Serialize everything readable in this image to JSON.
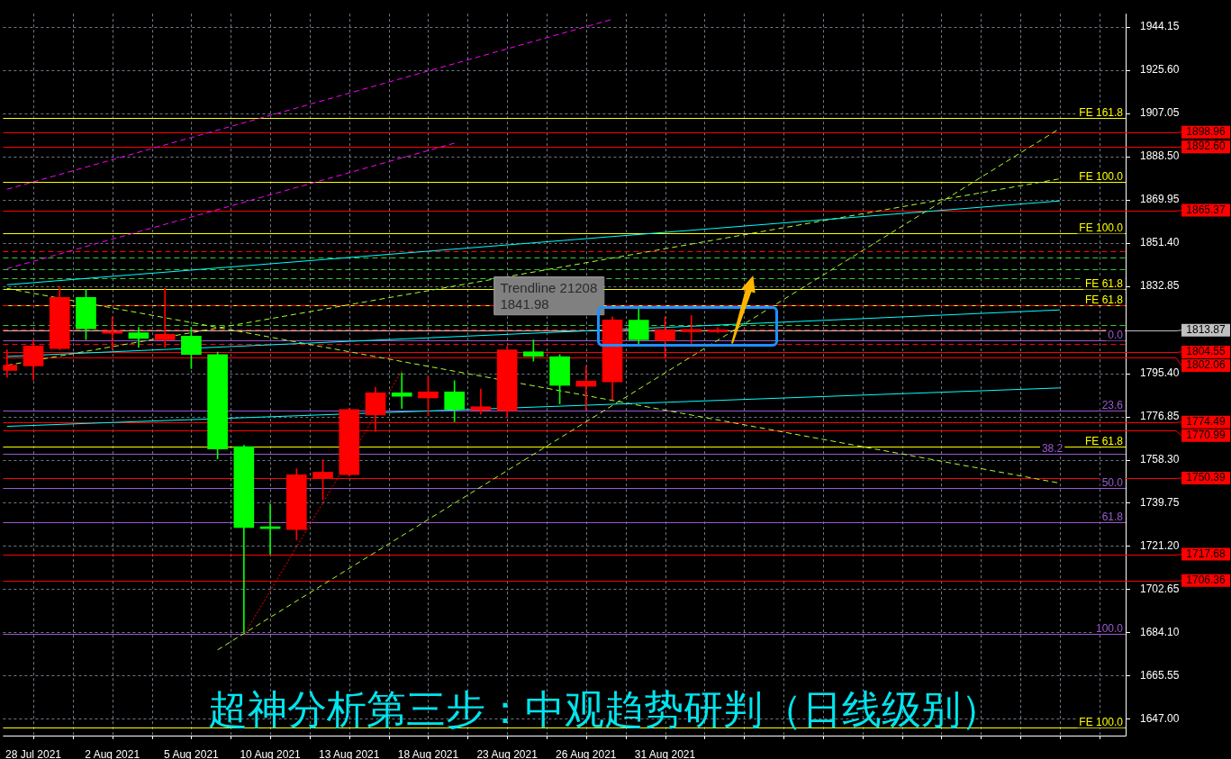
{
  "chart_data": {
    "type": "candlestick",
    "title": "超神分析第三步：中观趋势研判（日线级别）",
    "annotations": [
      "Trendline 21208",
      "1841.98",
      {
        "text": "0.0",
        "y": 1809.4
      },
      {
        "text": "23.6",
        "y": 1779.35
      },
      {
        "text": "38.2",
        "y": 1760.95
      },
      {
        "text": "50.0",
        "y": 1746.3
      },
      {
        "text": "61.8",
        "y": 1731.6
      },
      {
        "text": "100.0",
        "y": 1683.45
      }
    ],
    "categories": [
      null,
      "28 Jul 2021",
      null,
      null,
      "2 Aug 2021",
      null,
      null,
      "5 Aug 2021",
      null,
      null,
      "10 Aug 2021",
      null,
      null,
      "13 Aug 2021",
      null,
      null,
      "18 Aug 2021",
      null,
      null,
      "23 Aug 2021",
      null,
      null,
      "26 Aug 2021",
      null,
      null,
      "31 Aug 2021",
      null,
      null,
      null,
      null,
      null,
      null,
      null,
      null,
      null,
      null,
      null,
      null,
      null,
      null,
      null
    ],
    "ohlc": [
      [
        1796.6,
        1805.4,
        1793.6,
        1798.9
      ],
      [
        1798.5,
        1809.7,
        1792.5,
        1807.1
      ],
      [
        1806.0,
        1832.6,
        1805.5,
        1828.0
      ],
      [
        1828.0,
        1831.2,
        1809.9,
        1814.5
      ],
      [
        1812.6,
        1819.6,
        1805.6,
        1813.5
      ],
      [
        1812.8,
        1815.1,
        1806.6,
        1810.3
      ],
      [
        1809.8,
        1831.8,
        1806.5,
        1812.1
      ],
      [
        1811.3,
        1815.1,
        1797.4,
        1803.5
      ],
      [
        1803.4,
        1804.5,
        1758.6,
        1762.9
      ],
      [
        1763.9,
        1764.5,
        1684.1,
        1729.1
      ],
      [
        1729.4,
        1739.2,
        1717.7,
        1728.7
      ],
      [
        1728.3,
        1754.4,
        1723.8,
        1751.8
      ],
      [
        1750.5,
        1758.2,
        1741.1,
        1752.9
      ],
      [
        1751.9,
        1780.3,
        1751.3,
        1779.8
      ],
      [
        1777.5,
        1789.4,
        1770.4,
        1787.0
      ],
      [
        1787.0,
        1795.5,
        1780.3,
        1785.5
      ],
      [
        1784.8,
        1793.9,
        1777.2,
        1787.4
      ],
      [
        1787.4,
        1792.2,
        1774.6,
        1779.9
      ],
      [
        1779.5,
        1788.6,
        1777.8,
        1781.0
      ],
      [
        1779.3,
        1806.9,
        1776.5,
        1805.4
      ],
      [
        1804.6,
        1809.7,
        1800.6,
        1802.7
      ],
      [
        1802.5,
        1803.4,
        1782.2,
        1790.2
      ],
      [
        1789.8,
        1798.4,
        1779.7,
        1792.0
      ],
      [
        1791.7,
        1819.6,
        1784.1,
        1818.3
      ],
      [
        1818.2,
        1823.1,
        1807.5,
        1809.8
      ],
      [
        1809.4,
        1819.6,
        1801.8,
        1814.1
      ],
      [
        1813.2,
        1820.2,
        1808.2,
        1814.2
      ],
      [
        1813.2,
        1815.0,
        1812.8,
        1813.87
      ],
      null,
      null,
      null,
      null,
      null,
      null,
      null,
      null,
      null,
      null,
      null,
      null,
      null
    ],
    "colors": [
      "#ff0000",
      "#ff0000",
      "#ff0000",
      "#00ff00",
      "#ff0000",
      "#00ff00",
      "#ff0000",
      "#00ff00",
      "#00ff00",
      "#00ff00",
      "#00ff00",
      "#ff0000",
      "#ff0000",
      "#ff0000",
      "#ff0000",
      "#00ff00",
      "#ff0000",
      "#00ff00",
      "#ff0000",
      "#ff0000",
      "#00ff00",
      "#00ff00",
      "#ff0000",
      "#ff0000",
      "#00ff00",
      "#ff0000",
      "#ff0000",
      "#ff0000",
      null,
      null,
      null,
      null,
      null,
      null,
      null,
      null,
      null,
      null,
      null,
      null,
      null
    ],
    "series": [
      {
        "type": "line",
        "color": "#ff00ff",
        "line_style": "dashed",
        "values": [
          1874.4,
          null,
          null,
          null,
          null,
          null,
          null,
          null,
          null,
          null,
          null,
          null,
          null,
          null,
          null,
          null,
          null,
          null,
          null,
          null,
          null,
          null,
          null,
          1947.4,
          null,
          null,
          null,
          null,
          null,
          null,
          null,
          null,
          null,
          null,
          null,
          null,
          null,
          null,
          null,
          null,
          null
        ]
      },
      {
        "type": "line",
        "color": "#ff00ff",
        "line_style": "dashed",
        "values": [
          1840.3,
          null,
          null,
          null,
          null,
          null,
          null,
          null,
          null,
          null,
          null,
          null,
          null,
          null,
          null,
          null,
          null,
          1894.2,
          null,
          null,
          null,
          null,
          null,
          null,
          null,
          null,
          null,
          null,
          null,
          null,
          null,
          null,
          null,
          null,
          null,
          null,
          null,
          null,
          null,
          null,
          null
        ]
      },
      {
        "type": "line",
        "color": "#00ffff",
        "line_style": "solid",
        "values": [
          1833.4,
          null,
          null,
          null,
          null,
          null,
          null,
          null,
          null,
          null,
          null,
          null,
          null,
          null,
          null,
          null,
          null,
          null,
          null,
          null,
          null,
          null,
          null,
          null,
          null,
          null,
          null,
          null,
          null,
          null,
          null,
          null,
          null,
          null,
          null,
          null,
          null,
          null,
          null,
          null,
          1869.4
        ]
      },
      {
        "type": "line",
        "color": "#00ffff",
        "line_style": "solid",
        "values": [
          1772.6,
          null,
          null,
          null,
          null,
          null,
          null,
          null,
          null,
          null,
          null,
          null,
          null,
          null,
          null,
          null,
          null,
          null,
          null,
          null,
          null,
          null,
          null,
          null,
          null,
          null,
          null,
          null,
          null,
          null,
          null,
          null,
          null,
          null,
          null,
          null,
          null,
          null,
          null,
          null,
          1789.1
        ]
      },
      {
        "type": "line",
        "color": "#00ffff",
        "line_style": "solid",
        "values": [
          1802.6,
          null,
          null,
          null,
          null,
          null,
          null,
          null,
          null,
          null,
          null,
          null,
          null,
          null,
          null,
          null,
          null,
          null,
          null,
          null,
          null,
          null,
          null,
          null,
          null,
          null,
          null,
          null,
          null,
          null,
          null,
          null,
          null,
          null,
          null,
          null,
          null,
          null,
          null,
          null,
          1822.6
        ]
      },
      {
        "type": "line",
        "color": "#adff2f",
        "line_style": "dashed",
        "values": [
          1831.8,
          null,
          null,
          null,
          null,
          null,
          null,
          null,
          null,
          null,
          null,
          null,
          null,
          null,
          null,
          null,
          null,
          null,
          null,
          null,
          null,
          null,
          null,
          null,
          null,
          null,
          null,
          null,
          null,
          null,
          null,
          null,
          null,
          null,
          null,
          null,
          null,
          null,
          null,
          null,
          1748.2
        ]
      },
      {
        "type": "line",
        "color": "#adff2f",
        "line_style": "dashed",
        "values": [
          null,
          null,
          null,
          null,
          null,
          null,
          null,
          null,
          1676.6,
          null,
          null,
          null,
          null,
          null,
          null,
          null,
          null,
          null,
          null,
          null,
          null,
          null,
          null,
          null,
          null,
          null,
          null,
          null,
          null,
          null,
          null,
          null,
          null,
          null,
          null,
          null,
          null,
          null,
          null,
          null,
          1900.5
        ]
      },
      {
        "type": "line",
        "color": "#adff2f",
        "line_style": "dashed",
        "values": [
          1798.8,
          null,
          null,
          null,
          null,
          null,
          null,
          null,
          null,
          null,
          null,
          null,
          null,
          null,
          null,
          null,
          null,
          null,
          null,
          null,
          null,
          null,
          null,
          null,
          null,
          null,
          null,
          null,
          null,
          null,
          null,
          null,
          null,
          null,
          null,
          null,
          null,
          null,
          null,
          null,
          1878.9
        ]
      },
      {
        "type": "line",
        "color": "#ff0000",
        "line_style": "dotted",
        "values": [
          null,
          null,
          null,
          null,
          null,
          null,
          null,
          null,
          null,
          1683.0,
          null,
          null,
          null,
          null,
          null,
          1796.5,
          null,
          null,
          null,
          null,
          null,
          null,
          null,
          null,
          null,
          null,
          null,
          null,
          null,
          null,
          null,
          null,
          null,
          null,
          null,
          null,
          null,
          null,
          null,
          null,
          null
        ]
      }
    ],
    "ref_lines": [
      {
        "axis": "y",
        "value": 1898.96,
        "label": "1898.96",
        "color": "#ff0000"
      },
      {
        "axis": "y",
        "value": 1892.6,
        "label": "1892.60",
        "color": "#ff0000"
      },
      {
        "axis": "y",
        "value": 1865.37,
        "label": "1865.37",
        "color": "#ff0000"
      },
      {
        "axis": "y",
        "value": 1813.87,
        "label": "1813.87",
        "color": "#c0c0c0"
      },
      {
        "axis": "y",
        "value": 1804.55,
        "label": "1804.55",
        "color": "#ff0000"
      },
      {
        "axis": "y",
        "value": 1802.06,
        "label": "1802.06",
        "color": "#ff0000"
      },
      {
        "axis": "y",
        "value": 1774.49,
        "label": "1774.49",
        "color": "#ff0000"
      },
      {
        "axis": "y",
        "value": 1770.99,
        "label": "1770.99",
        "color": "#ff0000"
      },
      {
        "axis": "y",
        "value": 1750.39,
        "label": "1750.39",
        "color": "#ff0000"
      },
      {
        "axis": "y",
        "value": 1717.68,
        "label": "1717.68",
        "color": "#ff0000"
      },
      {
        "axis": "y",
        "value": 1706.36,
        "label": "1706.36",
        "color": "#ff0000"
      },
      {
        "axis": "y",
        "value": 1905.06,
        "label": "FE 161.8",
        "color": "#ffff00"
      },
      {
        "axis": "y",
        "value": 1877.7,
        "label": "FE 100.0",
        "color": "#ffff00"
      },
      {
        "axis": "y",
        "value": 1855.35,
        "label": "FE 100.0",
        "color": "#ffff00"
      },
      {
        "axis": "y",
        "value": 1831.4,
        "label": "FE 61.8",
        "color": "#ffff00"
      },
      {
        "axis": "y",
        "value": 1824.6,
        "label": "FE 61.8",
        "color": "#ffff00"
      },
      {
        "axis": "y",
        "value": 1763.9,
        "label": "FE 61.8",
        "color": "#ffff00"
      },
      {
        "axis": "y",
        "value": 1643.2,
        "label": "FE 100.0",
        "color": "#ffff00"
      },
      {
        "axis": "y",
        "value": 1809.4,
        "color": "#9b59d0"
      },
      {
        "axis": "y",
        "value": 1779.35,
        "color": "#9b59d0"
      },
      {
        "axis": "y",
        "value": 1760.95,
        "color": "#9b59d0"
      },
      {
        "axis": "y",
        "value": 1746.3,
        "color": "#9b59d0"
      },
      {
        "axis": "y",
        "value": 1731.6,
        "color": "#9b59d0"
      },
      {
        "axis": "y",
        "value": 1683.45,
        "color": "#9b59d0"
      },
      {
        "axis": "y",
        "value": 1848.0,
        "color": "#ff0000",
        "line_style": "dashed"
      },
      {
        "axis": "y",
        "value": 1824.45,
        "color": "#ff0000",
        "line_style": "dashed"
      },
      {
        "axis": "y",
        "value": 1814.25,
        "color": "#ff0000",
        "line_style": "dashed"
      },
      {
        "axis": "y",
        "value": 1808.15,
        "color": "#ff0000",
        "line_style": "dashed"
      },
      {
        "axis": "y",
        "value": 1845.1,
        "color": "#32cd32",
        "line_style": "dashed"
      },
      {
        "axis": "y",
        "value": 1840.05,
        "color": "#32cd32",
        "line_style": "dashed"
      },
      {
        "axis": "y",
        "value": 1836.25,
        "color": "#32cd32",
        "line_style": "dashed"
      },
      {
        "axis": "y",
        "value": 1816.25,
        "color": "#32cd32",
        "line_style": "dashed"
      }
    ],
    "ylim": [
      1639.8,
      1949.8
    ],
    "yticks": [
      {
        "value": 1944.15,
        "label": "1944.15"
      },
      {
        "value": 1925.6,
        "label": "1925.60"
      },
      {
        "value": 1907.05,
        "label": "1907.05"
      },
      {
        "value": 1888.5,
        "label": "1888.50"
      },
      {
        "value": 1869.95,
        "label": "1869.95"
      },
      {
        "value": 1851.4,
        "label": "1851.40"
      },
      {
        "value": 1832.85,
        "label": "1832.85"
      },
      {
        "value": 1795.4,
        "label": "1795.40"
      },
      {
        "value": 1776.85,
        "label": "1776.85"
      },
      {
        "value": 1758.3,
        "label": "1758.30"
      },
      {
        "value": 1739.75,
        "label": "1739.75"
      },
      {
        "value": 1721.2,
        "label": "1721.20"
      },
      {
        "value": 1702.65,
        "label": "1702.65"
      },
      {
        "value": 1684.1,
        "label": "1684.10"
      },
      {
        "value": 1665.55,
        "label": "1665.55"
      },
      {
        "value": 1647,
        "label": "1647.00"
      }
    ],
    "grid": true,
    "legend": false
  }
}
